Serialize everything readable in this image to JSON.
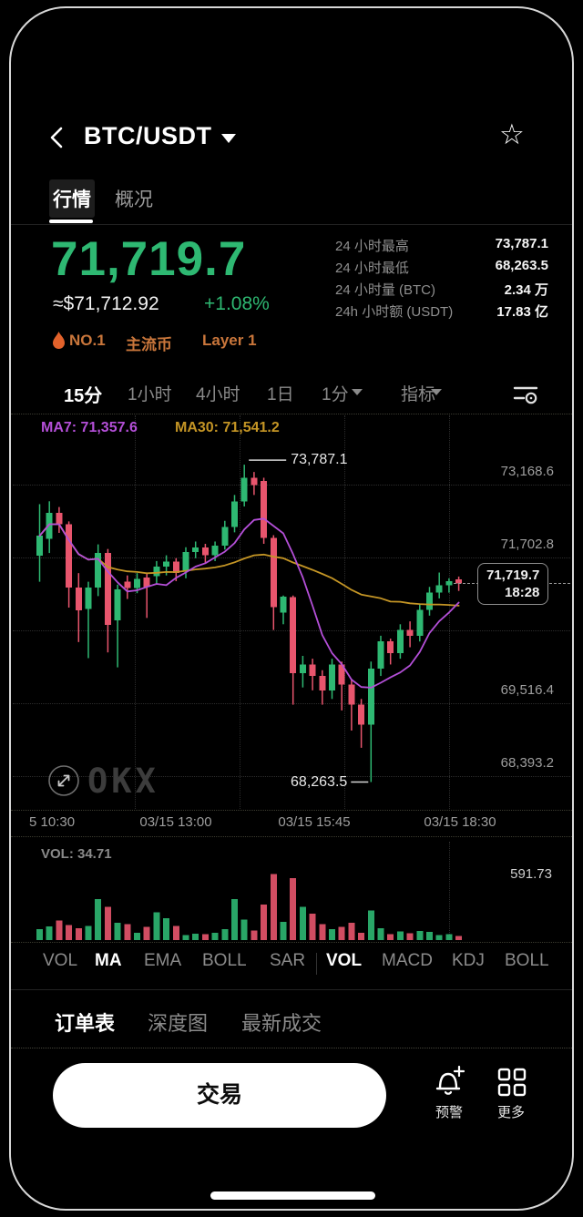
{
  "header": {
    "title": "BTC/USDT",
    "star_icon": "☆"
  },
  "tabs": [
    {
      "label": "行情",
      "active": true
    },
    {
      "label": "概况",
      "active": false
    }
  ],
  "price": {
    "last": "71,719.7",
    "fiat": "≈$71,712.92",
    "change": "+1.08%",
    "up_color": "#2EB872",
    "down_color": "#E8556D"
  },
  "badges": [
    {
      "icon": "flame-icon",
      "label": "NO.1"
    },
    {
      "label": "主流币"
    },
    {
      "label": "Layer 1"
    }
  ],
  "stats": [
    {
      "label": "24 小时最高",
      "value": "73,787.1"
    },
    {
      "label": "24 小时最低",
      "value": "68,263.5"
    },
    {
      "label": "24 小时量 (BTC)",
      "value": "2.34 万"
    },
    {
      "label": "24h 小时额 (USDT)",
      "value": "17.83 亿"
    }
  ],
  "timeframes": [
    {
      "label": "15分",
      "active": true
    },
    {
      "label": "1小时",
      "active": false
    },
    {
      "label": "4小时",
      "active": false
    },
    {
      "label": "1日",
      "active": false
    },
    {
      "label": "1分",
      "active": false,
      "caret": true
    },
    {
      "label": "指标",
      "active": false,
      "caret": true
    }
  ],
  "chart_data": {
    "type": "candlestick",
    "ma_labels": [
      {
        "text": "MA7: 71,357.6",
        "color": "#B44FD8"
      },
      {
        "text": "MA30: 71,541.2",
        "color": "#C49525"
      }
    ],
    "y_axis_labels": [
      "73,168.6",
      "71,702.8",
      "69,516.4",
      "68,393.2"
    ],
    "x_axis_labels": [
      "5 10:30",
      "03/15 13:00",
      "03/15 15:45",
      "03/15 18:30"
    ],
    "high_annotation": "73,787.1",
    "low_annotation": "68,263.5",
    "price_tag": {
      "price": "71,719.7",
      "time": "18:28"
    },
    "watermark": "OKX",
    "colors": {
      "up": "#2EB872",
      "down": "#E8556D",
      "ma7": "#B44FD8",
      "ma30": "#C49525"
    },
    "candles": [
      [
        72200,
        73100,
        71750,
        72550
      ],
      [
        72500,
        73150,
        72250,
        72950
      ],
      [
        72950,
        73050,
        72600,
        72750
      ],
      [
        72750,
        72800,
        71300,
        71650
      ],
      [
        71650,
        71900,
        70700,
        71250
      ],
      [
        71280,
        71750,
        70420,
        71650
      ],
      [
        71650,
        72400,
        71500,
        72250
      ],
      [
        72250,
        72320,
        70520,
        71000
      ],
      [
        71080,
        71700,
        70260,
        71620
      ],
      [
        71750,
        71860,
        71450,
        71640
      ],
      [
        71640,
        71900,
        71550,
        71800
      ],
      [
        71820,
        71910,
        71120,
        71660
      ],
      [
        71850,
        72110,
        71700,
        72010
      ],
      [
        72010,
        72210,
        71860,
        72100
      ],
      [
        72100,
        72160,
        71760,
        71900
      ],
      [
        71950,
        72350,
        71810,
        72270
      ],
      [
        72270,
        72450,
        72160,
        72350
      ],
      [
        72350,
        72410,
        72060,
        72210
      ],
      [
        72210,
        72450,
        72110,
        72380
      ],
      [
        72380,
        72810,
        72310,
        72700
      ],
      [
        72700,
        73260,
        72610,
        73150
      ],
      [
        73150,
        73787.1,
        73060,
        73560
      ],
      [
        73560,
        73660,
        73260,
        73430
      ],
      [
        73500,
        73560,
        72410,
        72510
      ],
      [
        72510,
        72560,
        70910,
        71310
      ],
      [
        71210,
        71510,
        71010,
        71490
      ],
      [
        71480,
        71510,
        69610,
        70160
      ],
      [
        70160,
        70460,
        69910,
        70310
      ],
      [
        70310,
        70410,
        69860,
        70110
      ],
      [
        70110,
        70210,
        69610,
        69860
      ],
      [
        69860,
        70410,
        69710,
        70310
      ],
      [
        70310,
        70360,
        69510,
        69960
      ],
      [
        69960,
        70060,
        69160,
        69610
      ],
      [
        69610,
        69710,
        68860,
        69260
      ],
      [
        69260,
        70360,
        68263.5,
        70240
      ],
      [
        70240,
        70810,
        70110,
        70710
      ],
      [
        70710,
        70760,
        70310,
        70510
      ],
      [
        70510,
        71010,
        70410,
        70910
      ],
      [
        70910,
        71060,
        70610,
        70810
      ],
      [
        70810,
        71360,
        70710,
        71260
      ],
      [
        71260,
        71660,
        71160,
        71560
      ],
      [
        71560,
        71910,
        71460,
        71690
      ],
      [
        71690,
        71810,
        71560,
        71760
      ],
      [
        71790,
        71840,
        71590,
        71719.7
      ]
    ],
    "volume": {
      "label": "VOL: 34.71",
      "max_label": "591.73",
      "max_value": 591.73,
      "values": [
        95,
        120,
        170,
        130,
        105,
        125,
        360,
        290,
        150,
        140,
        65,
        115,
        245,
        190,
        125,
        45,
        55,
        50,
        65,
        95,
        360,
        180,
        85,
        310,
        580,
        160,
        545,
        290,
        230,
        140,
        95,
        115,
        150,
        65,
        260,
        105,
        50,
        75,
        60,
        80,
        70,
        45,
        50,
        34.71
      ]
    }
  },
  "indicator_tabs": [
    {
      "label": "VOL",
      "active": false
    },
    {
      "label": "MA",
      "active": true
    },
    {
      "label": "EMA",
      "active": false
    },
    {
      "label": "BOLL",
      "active": false
    },
    {
      "label": "SAR",
      "active": false
    },
    {
      "label": "VOL",
      "active": true
    },
    {
      "label": "MACD",
      "active": false
    },
    {
      "label": "KDJ",
      "active": false
    },
    {
      "label": "BOLL",
      "active": false
    }
  ],
  "bottom_tabs": [
    {
      "label": "订单表",
      "active": true
    },
    {
      "label": "深度图",
      "active": false
    },
    {
      "label": "最新成交",
      "active": false
    }
  ],
  "footer": {
    "trade_label": "交易",
    "alert_label": "预警",
    "more_label": "更多"
  }
}
